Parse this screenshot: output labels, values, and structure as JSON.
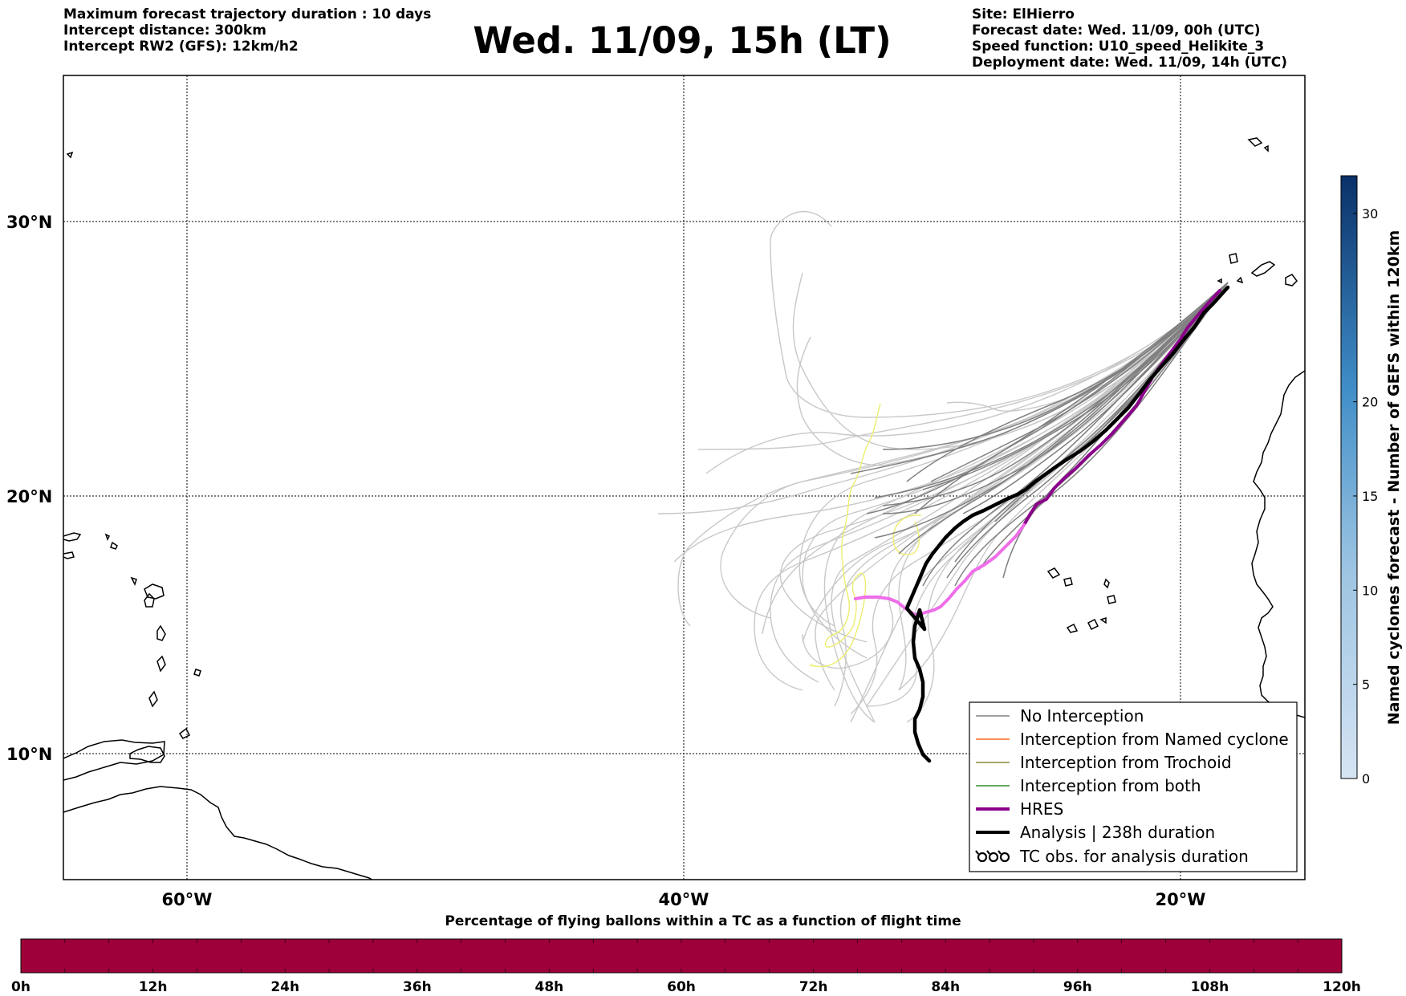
{
  "header": {
    "left_lines": [
      "Maximum forecast trajectory duration : 10 days",
      "Intercept distance: 300km",
      "Intercept RW2 (GFS):  12km/h2"
    ],
    "title": "Wed. 11/09, 15h (LT)",
    "right_lines": [
      "Site: ElHierro",
      "Forecast date: Wed. 11/09, 00h (UTC)",
      "Speed function: U10_speed_Helikite_3",
      "Deployment date: Wed. 11/09, 14h (UTC)"
    ]
  },
  "map": {
    "lon_range": [
      -65,
      -15
    ],
    "lat_range": [
      5,
      35
    ],
    "lat_ticks": [
      {
        "value": 30,
        "label": "30°N"
      },
      {
        "value": 20,
        "label": "20°N"
      },
      {
        "value": 10,
        "label": "10°N"
      }
    ],
    "lon_ticks": [
      {
        "value": -60,
        "label": "60°W"
      },
      {
        "value": -40,
        "label": "40°W"
      },
      {
        "value": -20,
        "label": "20°W"
      }
    ],
    "colors": {
      "no_interception": "#808080",
      "no_interception_far": "#c8c8c8",
      "named_cyclone": "#ff6a1e",
      "trochoid": "#8b8b3a",
      "both": "#2e8b2e",
      "hres": "#8b008b",
      "hres_light": "#ee6ee9",
      "analysis": "#000000",
      "yellow_track": "#eeee77"
    }
  },
  "legend": {
    "items": [
      {
        "label": "No Interception",
        "style": "thin",
        "color": "#808080"
      },
      {
        "label": "Interception from Named cyclone",
        "style": "thin",
        "color": "#ff6a1e"
      },
      {
        "label": "Interception from Trochoid",
        "style": "thin",
        "color": "#8b8b3a"
      },
      {
        "label": "Interception from both",
        "style": "thin",
        "color": "#2e8b2e"
      },
      {
        "label": "HRES",
        "style": "thick",
        "color": "#8b008b"
      },
      {
        "label": "Analysis | 238h duration",
        "style": "thick",
        "color": "#000000"
      },
      {
        "label": "TC obs. for analysis duration",
        "style": "symbol",
        "color": "#000000"
      }
    ]
  },
  "colorbar": {
    "label": "Named cyclones forecast - Number of GEFS within 120km",
    "min": 0,
    "max": 32,
    "ticks": [
      {
        "value": 0,
        "label": "0"
      },
      {
        "value": 5,
        "label": "5"
      },
      {
        "value": 10,
        "label": "10"
      },
      {
        "value": 15,
        "label": "15"
      },
      {
        "value": 20,
        "label": "20"
      },
      {
        "value": 30,
        "label": "30"
      }
    ],
    "color_low": "#d6e4f3",
    "color_high": "#0a3068"
  },
  "time_bar": {
    "title": "Percentage of flying ballons within a TC as a function of flight time",
    "color": "#9e003a",
    "ticks": [
      "0h",
      "12h",
      "24h",
      "36h",
      "48h",
      "60h",
      "72h",
      "84h",
      "96h",
      "108h",
      "120h"
    ]
  }
}
